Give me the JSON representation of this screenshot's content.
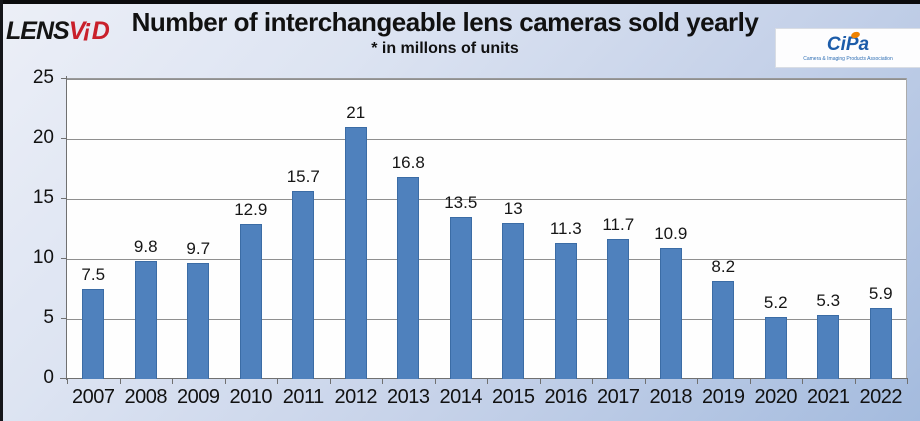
{
  "header": {
    "lensvid": {
      "p1": "LENS",
      "p2": "V",
      "p3": "!",
      "p4": "D"
    },
    "title": "Number of interchangeable lens cameras sold yearly",
    "subtitle": "* in millons of units",
    "cipa_text": "CiPa",
    "cipa_tagline": "Camera & Imaging Products Association"
  },
  "colors": {
    "bar": "#4f81bd",
    "bar_border": "#3b6ca5",
    "lensvid_red": "#c9202b",
    "background_top": "#eceff7",
    "background_bottom": "#a4bbde",
    "plot_background": "#fefefe",
    "gridline": "#8f8f8f"
  },
  "chart_data": {
    "type": "bar",
    "title": "Number of interchangeable lens cameras sold yearly",
    "subtitle": "* in millons of units",
    "categories": [
      "2007",
      "2008",
      "2009",
      "2010",
      "2011",
      "2012",
      "2013",
      "2014",
      "2015",
      "2016",
      "2017",
      "2018",
      "2019",
      "2020",
      "2021",
      "2022"
    ],
    "values": [
      7.5,
      9.8,
      9.7,
      12.9,
      15.7,
      21,
      16.8,
      13.5,
      13,
      11.3,
      11.7,
      10.9,
      8.2,
      5.2,
      5.3,
      5.9
    ],
    "xlabel": "",
    "ylabel": "",
    "ylim": [
      0,
      25
    ],
    "yticks": [
      0,
      5,
      10,
      15,
      20,
      25
    ],
    "grid": true,
    "legend": false,
    "bar_color": "#4f81bd",
    "bar_border_color": "#3b6ca5"
  }
}
